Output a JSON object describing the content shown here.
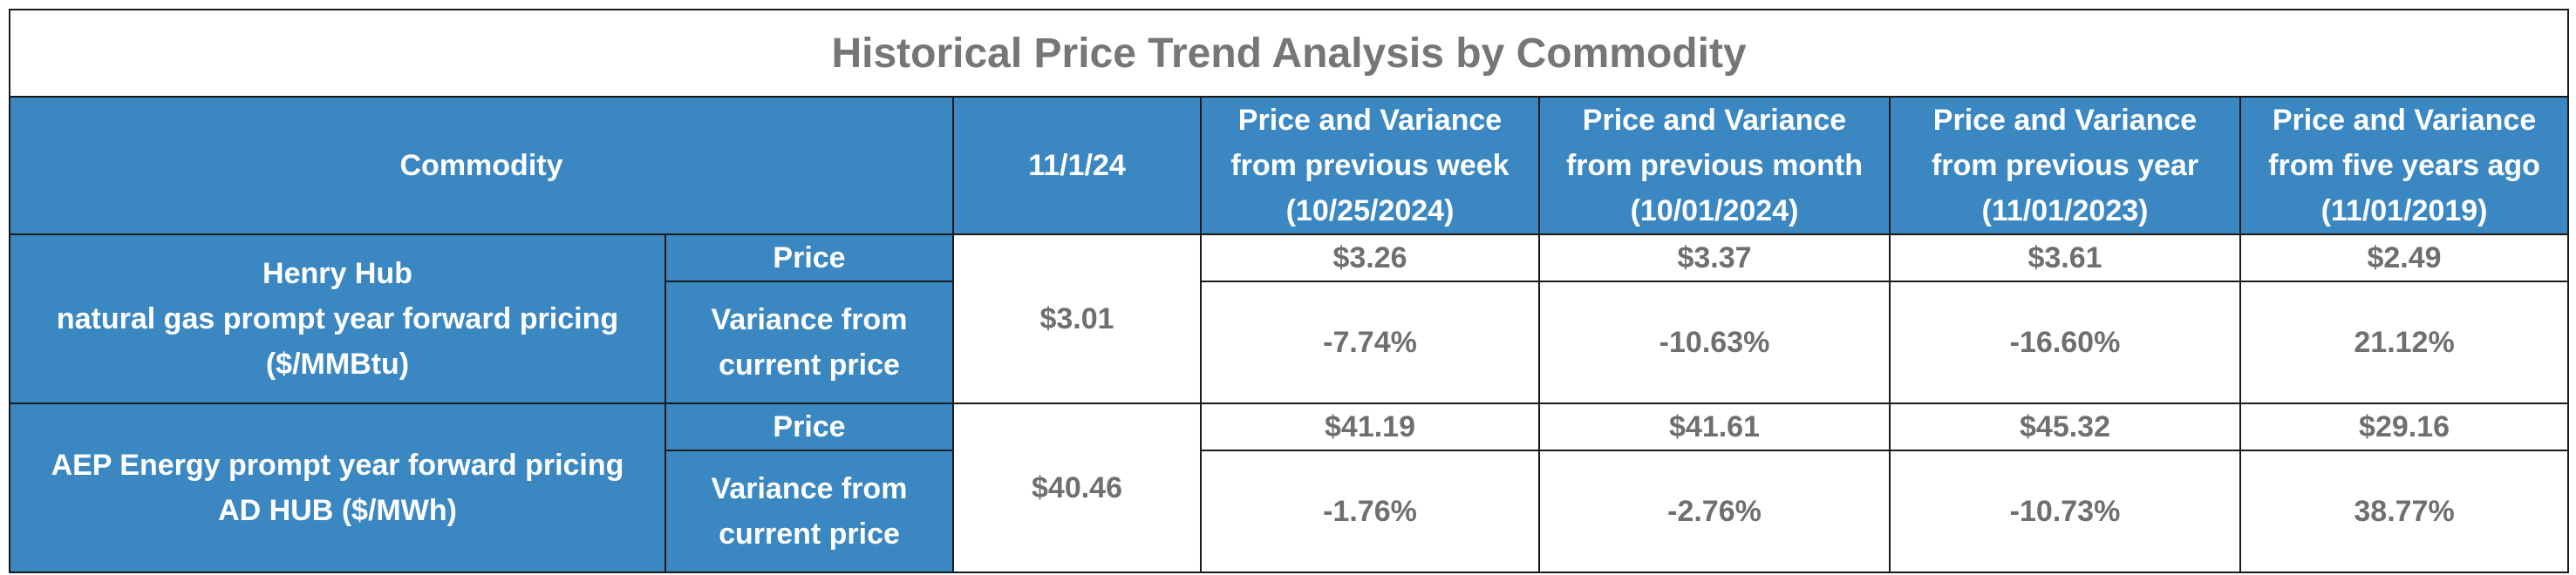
{
  "title": "Historical Price Trend Analysis by Commodity",
  "headers": {
    "commodity": "Commodity",
    "current_date": "11/1/24",
    "periods": [
      {
        "line1": "Price and Variance",
        "line2": "from previous week",
        "line3": "(10/25/2024)"
      },
      {
        "line1": "Price and Variance",
        "line2": "from previous month",
        "line3": "(10/01/2024)"
      },
      {
        "line1": "Price and Variance",
        "line2": "from previous year",
        "line3": "(11/01/2023)"
      },
      {
        "line1": "Price and Variance",
        "line2": "from five years ago",
        "line3": "(11/01/2019)"
      }
    ]
  },
  "row_labels": {
    "price": "Price",
    "variance_line1": "Variance from",
    "variance_line2": "current price"
  },
  "commodities": [
    {
      "name_lines": [
        "Henry Hub",
        "natural gas prompt year forward pricing",
        "($/MMBtu)"
      ],
      "current_price": "$3.01",
      "prices": [
        "$3.26",
        "$3.37",
        "$3.61",
        "$2.49"
      ],
      "variances": [
        "-7.74%",
        "-10.63%",
        "-16.60%",
        "21.12%"
      ]
    },
    {
      "name_lines": [
        "AEP Energy prompt year forward pricing",
        "AD HUB ($/MWh)"
      ],
      "current_price": "$40.46",
      "prices": [
        "$41.19",
        "$41.61",
        "$45.32",
        "$29.16"
      ],
      "variances": [
        "-1.76%",
        "-2.76%",
        "-10.73%",
        "38.77%"
      ]
    }
  ],
  "colors": {
    "header_blue": "#3a87c2",
    "title_gray": "#767676",
    "value_gray": "#6f6f6f"
  }
}
